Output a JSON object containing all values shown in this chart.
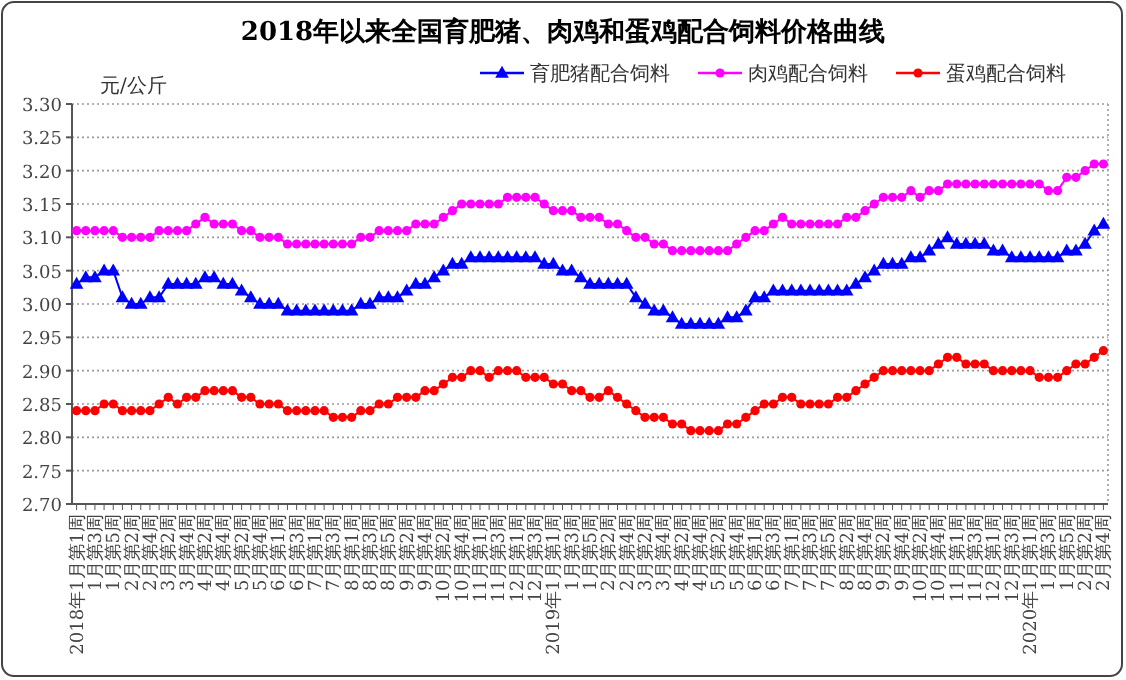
{
  "chart_data": {
    "type": "line",
    "title": "2018年以来全国育肥猪、肉鸡和蛋鸡配合饲料价格曲线",
    "ylabel": "元/公斤",
    "categories": [
      "2018年1月第1周",
      null,
      "1月第3周",
      null,
      "1月第5周",
      null,
      "2月第2周",
      null,
      "2月第4周",
      null,
      "3月第2周",
      null,
      "3月第4周",
      null,
      "4月第2周",
      null,
      "4月第4周",
      null,
      "5月第2周",
      null,
      "5月第4周",
      null,
      "6月第1周",
      null,
      "6月第3周",
      null,
      "7月第1周",
      null,
      "7月第3周",
      null,
      "8月第1周",
      null,
      "8月第3周",
      null,
      "8月第5周",
      null,
      "9月第2周",
      null,
      "9月第4周",
      null,
      "10月第2周",
      null,
      "10月第4周",
      null,
      "11月第1周",
      null,
      "11月第3周",
      null,
      "12月第1周",
      null,
      "12月第3周",
      null,
      "2019年1月第1周",
      null,
      "1月第3周",
      null,
      "1月第5周",
      null,
      "2月第2周",
      null,
      "2月第4周",
      null,
      "3月第2周",
      null,
      "3月第4周",
      null,
      "4月第2周",
      null,
      "4月第4周",
      null,
      "5月第2周",
      null,
      "5月第4周",
      null,
      "6月第1周",
      null,
      "6月第3周",
      null,
      "7月第1周",
      null,
      "7月第3周",
      null,
      "7月第5周",
      null,
      "8月第2周",
      null,
      "8月第4周",
      null,
      "9月第2周",
      null,
      "9月第4周",
      null,
      "10月第2周",
      null,
      "10月第4周",
      null,
      "11月第1周",
      null,
      "11月第3周",
      null,
      "12月第1周",
      null,
      "12月第3周",
      null,
      "2020年1月第1周",
      null,
      "1月第3周",
      null,
      "1月第5周",
      null,
      "2月第2周",
      null,
      "2月第4周"
    ],
    "series": [
      {
        "name": "育肥猪配合饲料",
        "color": "#0000ff",
        "marker": "triangle",
        "values": [
          3.03,
          3.04,
          3.04,
          3.05,
          3.05,
          3.01,
          3.0,
          3.0,
          3.01,
          3.01,
          3.03,
          3.03,
          3.03,
          3.03,
          3.04,
          3.04,
          3.03,
          3.03,
          3.02,
          3.01,
          3.0,
          3.0,
          3.0,
          2.99,
          2.99,
          2.99,
          2.99,
          2.99,
          2.99,
          2.99,
          2.99,
          3.0,
          3.0,
          3.01,
          3.01,
          3.01,
          3.02,
          3.03,
          3.03,
          3.04,
          3.05,
          3.06,
          3.06,
          3.07,
          3.07,
          3.07,
          3.07,
          3.07,
          3.07,
          3.07,
          3.07,
          3.06,
          3.06,
          3.05,
          3.05,
          3.04,
          3.03,
          3.03,
          3.03,
          3.03,
          3.03,
          3.01,
          3.0,
          2.99,
          2.99,
          2.98,
          2.97,
          2.97,
          2.97,
          2.97,
          2.97,
          2.98,
          2.98,
          2.99,
          3.01,
          3.01,
          3.02,
          3.02,
          3.02,
          3.02,
          3.02,
          3.02,
          3.02,
          3.02,
          3.02,
          3.03,
          3.04,
          3.05,
          3.06,
          3.06,
          3.06,
          3.07,
          3.07,
          3.08,
          3.09,
          3.1,
          3.09,
          3.09,
          3.09,
          3.09,
          3.08,
          3.08,
          3.07,
          3.07,
          3.07,
          3.07,
          3.07,
          3.07,
          3.08,
          3.08,
          3.09,
          3.11,
          3.12
        ]
      },
      {
        "name": "肉鸡配合饲料",
        "color": "#ff00ff",
        "marker": "circle",
        "values": [
          3.11,
          3.11,
          3.11,
          3.11,
          3.11,
          3.1,
          3.1,
          3.1,
          3.1,
          3.11,
          3.11,
          3.11,
          3.11,
          3.12,
          3.13,
          3.12,
          3.12,
          3.12,
          3.11,
          3.11,
          3.1,
          3.1,
          3.1,
          3.09,
          3.09,
          3.09,
          3.09,
          3.09,
          3.09,
          3.09,
          3.09,
          3.1,
          3.1,
          3.11,
          3.11,
          3.11,
          3.11,
          3.12,
          3.12,
          3.12,
          3.13,
          3.14,
          3.15,
          3.15,
          3.15,
          3.15,
          3.15,
          3.16,
          3.16,
          3.16,
          3.16,
          3.15,
          3.14,
          3.14,
          3.14,
          3.13,
          3.13,
          3.13,
          3.12,
          3.12,
          3.11,
          3.1,
          3.1,
          3.09,
          3.09,
          3.08,
          3.08,
          3.08,
          3.08,
          3.08,
          3.08,
          3.08,
          3.09,
          3.1,
          3.11,
          3.11,
          3.12,
          3.13,
          3.12,
          3.12,
          3.12,
          3.12,
          3.12,
          3.12,
          3.13,
          3.13,
          3.14,
          3.15,
          3.16,
          3.16,
          3.16,
          3.17,
          3.16,
          3.17,
          3.17,
          3.18,
          3.18,
          3.18,
          3.18,
          3.18,
          3.18,
          3.18,
          3.18,
          3.18,
          3.18,
          3.18,
          3.17,
          3.17,
          3.19,
          3.19,
          3.2,
          3.21,
          3.21
        ]
      },
      {
        "name": "蛋鸡配合饲料",
        "color": "#ff0000",
        "marker": "circle",
        "values": [
          2.84,
          2.84,
          2.84,
          2.85,
          2.85,
          2.84,
          2.84,
          2.84,
          2.84,
          2.85,
          2.86,
          2.85,
          2.86,
          2.86,
          2.87,
          2.87,
          2.87,
          2.87,
          2.86,
          2.86,
          2.85,
          2.85,
          2.85,
          2.84,
          2.84,
          2.84,
          2.84,
          2.84,
          2.83,
          2.83,
          2.83,
          2.84,
          2.84,
          2.85,
          2.85,
          2.86,
          2.86,
          2.86,
          2.87,
          2.87,
          2.88,
          2.89,
          2.89,
          2.9,
          2.9,
          2.89,
          2.9,
          2.9,
          2.9,
          2.89,
          2.89,
          2.89,
          2.88,
          2.88,
          2.87,
          2.87,
          2.86,
          2.86,
          2.87,
          2.86,
          2.85,
          2.84,
          2.83,
          2.83,
          2.83,
          2.82,
          2.82,
          2.81,
          2.81,
          2.81,
          2.81,
          2.82,
          2.82,
          2.83,
          2.84,
          2.85,
          2.85,
          2.86,
          2.86,
          2.85,
          2.85,
          2.85,
          2.85,
          2.86,
          2.86,
          2.87,
          2.88,
          2.89,
          2.9,
          2.9,
          2.9,
          2.9,
          2.9,
          2.9,
          2.91,
          2.92,
          2.92,
          2.91,
          2.91,
          2.91,
          2.9,
          2.9,
          2.9,
          2.9,
          2.9,
          2.89,
          2.89,
          2.89,
          2.9,
          2.91,
          2.91,
          2.92,
          2.93
        ]
      }
    ],
    "ylim": [
      2.7,
      3.3
    ],
    "yticks": [
      {
        "value": 2.7,
        "label": "2.70"
      },
      {
        "value": 2.75,
        "label": "2.75"
      },
      {
        "value": 2.8,
        "label": "2.80"
      },
      {
        "value": 2.85,
        "label": "2.85"
      },
      {
        "value": 2.9,
        "label": "2.90"
      },
      {
        "value": 2.95,
        "label": "2.95"
      },
      {
        "value": 3.0,
        "label": "3.00"
      },
      {
        "value": 3.05,
        "label": "3.05"
      },
      {
        "value": 3.1,
        "label": "3.10"
      },
      {
        "value": 3.15,
        "label": "3.15"
      },
      {
        "value": 3.2,
        "label": "3.20"
      },
      {
        "value": 3.25,
        "label": "3.25"
      },
      {
        "value": 3.3,
        "label": "3.30"
      }
    ],
    "grid": "y",
    "legend": "top right"
  }
}
